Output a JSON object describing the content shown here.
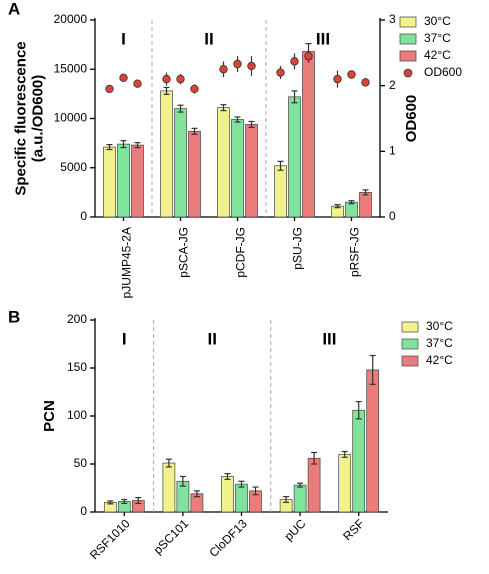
{
  "chart_data": [
    {
      "type": "bar",
      "panel": "A",
      "categories": [
        "pJUMP45-2A",
        "pSCA-JG",
        "pCDF-JG",
        "pSU-JG",
        "pRSF-JG"
      ],
      "ylabel": [
        "Specific fluorescence",
        "(a.u./OD600)"
      ],
      "y2label": "OD600",
      "ylim": [
        0,
        20000
      ],
      "yticks": [
        0,
        5000,
        10000,
        15000,
        20000
      ],
      "y2lim": [
        0,
        3
      ],
      "y2ticks": [
        0,
        1,
        2,
        3
      ],
      "annotations": [
        "I",
        "II",
        "III"
      ],
      "series": [
        {
          "name": "30°C",
          "color": "#f2f28c",
          "values": [
            7100,
            12800,
            11100,
            5200,
            1100
          ],
          "errors": [
            250,
            350,
            300,
            450,
            150
          ]
        },
        {
          "name": "37°C",
          "color": "#80e39c",
          "values": [
            7400,
            11000,
            9900,
            12200,
            1500
          ],
          "errors": [
            350,
            350,
            250,
            600,
            150
          ]
        },
        {
          "name": "42°C",
          "color": "#ea7c7c",
          "values": [
            7300,
            8700,
            9400,
            16800,
            2500
          ],
          "errors": [
            250,
            300,
            300,
            800,
            250
          ]
        },
        {
          "name": "OD600",
          "type": "scatter",
          "axis": "y2",
          "color": "#d8433a",
          "values": [
            1.95,
            2.1,
            2.25,
            2.2,
            2.1
          ],
          "errors": [
            0.03,
            0.1,
            0.12,
            0.1,
            0.13
          ]
        },
        {
          "name": "OD600",
          "type": "scatter",
          "axis": "y2",
          "color": "#d8433a",
          "values": [
            2.12,
            2.1,
            2.33,
            2.37,
            2.17
          ],
          "errors": [
            0.06,
            0.08,
            0.12,
            0.12,
            0.05
          ]
        },
        {
          "name": "OD600",
          "type": "scatter",
          "axis": "y2",
          "color": "#d8433a",
          "values": [
            2.03,
            1.95,
            2.3,
            2.45,
            2.05
          ],
          "errors": [
            0.03,
            0.07,
            0.15,
            0.1,
            0.03
          ]
        }
      ]
    },
    {
      "type": "bar",
      "panel": "B",
      "categories": [
        "RSF1010",
        "pSC101",
        "CloDF13",
        "pUC",
        "RSF"
      ],
      "ylabel": [
        "PCN"
      ],
      "ylim": [
        0,
        200
      ],
      "yticks": [
        0,
        50,
        100,
        150,
        200
      ],
      "annotations": [
        "I",
        "II",
        "III"
      ],
      "series": [
        {
          "name": "30°C",
          "color": "#f2f28c",
          "values": [
            10,
            51,
            37,
            13,
            60
          ],
          "errors": [
            1.5,
            4,
            3,
            3,
            3
          ]
        },
        {
          "name": "37°C",
          "color": "#80e39c",
          "values": [
            11,
            32,
            29,
            28,
            106
          ],
          "errors": [
            2,
            5,
            3,
            2,
            9
          ]
        },
        {
          "name": "42°C",
          "color": "#ea7c7c",
          "values": [
            12,
            19,
            22,
            56,
            148
          ],
          "errors": [
            3,
            3,
            4,
            6,
            15
          ]
        }
      ]
    }
  ]
}
